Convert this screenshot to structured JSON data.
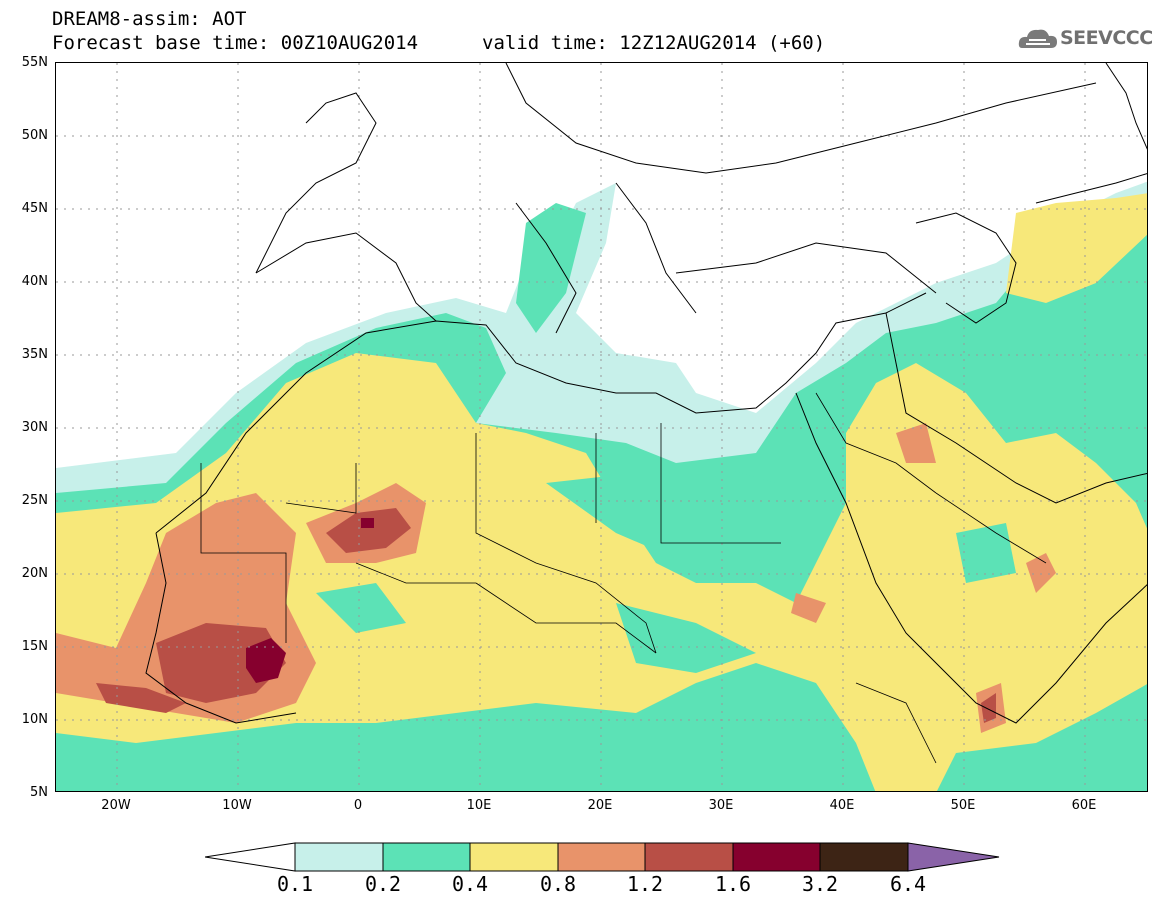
{
  "title": {
    "line1": "DREAM8-assim: AOT",
    "line2": "Forecast base time: 00Z10AUG2014",
    "line3": "valid time: 12Z12AUG2014 (+60)"
  },
  "logo": {
    "text": "SEEVCCC",
    "icon": "cloud-icon"
  },
  "axes": {
    "y_ticks": [
      "55N",
      "50N",
      "45N",
      "40N",
      "35N",
      "30N",
      "25N",
      "20N",
      "15N",
      "10N",
      "5N"
    ],
    "x_ticks": [
      "20W",
      "10W",
      "0",
      "10E",
      "20E",
      "30E",
      "40E",
      "50E",
      "60E"
    ]
  },
  "colorbar": {
    "labels": [
      "0.1",
      "0.2",
      "0.4",
      "0.8",
      "1.2",
      "1.6",
      "3.2",
      "6.4"
    ],
    "colors": [
      "#ffffff",
      "#c7f0ea",
      "#5ce2b6",
      "#f7e87a",
      "#e8936a",
      "#b84f46",
      "#86002e",
      "#3d2415",
      "#8a63a8"
    ]
  }
}
